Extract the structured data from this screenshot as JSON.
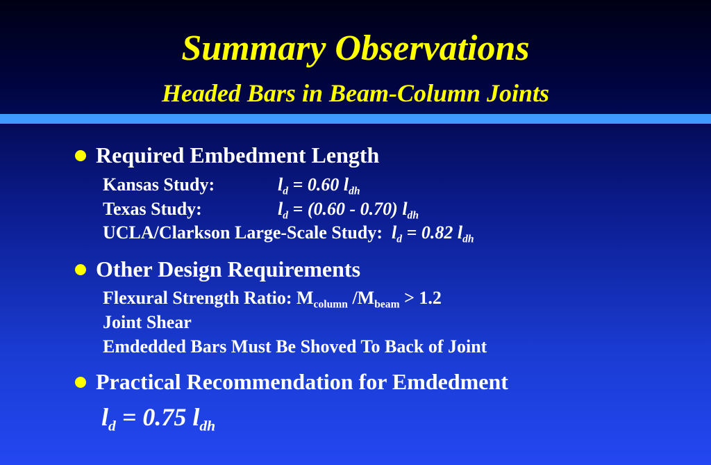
{
  "slide": {
    "title": "Summary Observations",
    "subtitle": "Headed Bars in Beam-Column Joints",
    "accent_color": "#ffff00",
    "rule_color": "#3f9bff"
  },
  "bullets": [
    {
      "label": "Required Embedment Length",
      "items": [
        {
          "label": "Kansas Study:",
          "formula_pre": "l",
          "formula_sub1": "d",
          "formula_mid": " = 0.60 l",
          "formula_sub2": "dh"
        },
        {
          "label": "Texas Study:",
          "formula_pre": "l",
          "formula_sub1": "d",
          "formula_mid": " = (0.60 - 0.70) l",
          "formula_sub2": "dh"
        },
        {
          "label": "UCLA/Clarkson Large-Scale Study:",
          "formula_pre": "l",
          "formula_sub1": "d",
          "formula_mid": " = 0.82 l",
          "formula_sub2": "dh"
        }
      ]
    },
    {
      "label": "Other Design Requirements",
      "items": [
        {
          "pre": "Flexural Strength Ratio: M",
          "sub1": "column",
          "mid": " /M",
          "sub2": "beam",
          "post": " > 1.2"
        },
        {
          "text": "Joint Shear"
        },
        {
          "text": "Emdedded Bars Must Be Shoved To Back of Joint"
        }
      ]
    },
    {
      "label": "Practical Recommendation for Emdedment",
      "formula": {
        "pre": "l",
        "sub1": "d",
        "mid": " = 0.75 l",
        "sub2": "dh"
      }
    }
  ]
}
